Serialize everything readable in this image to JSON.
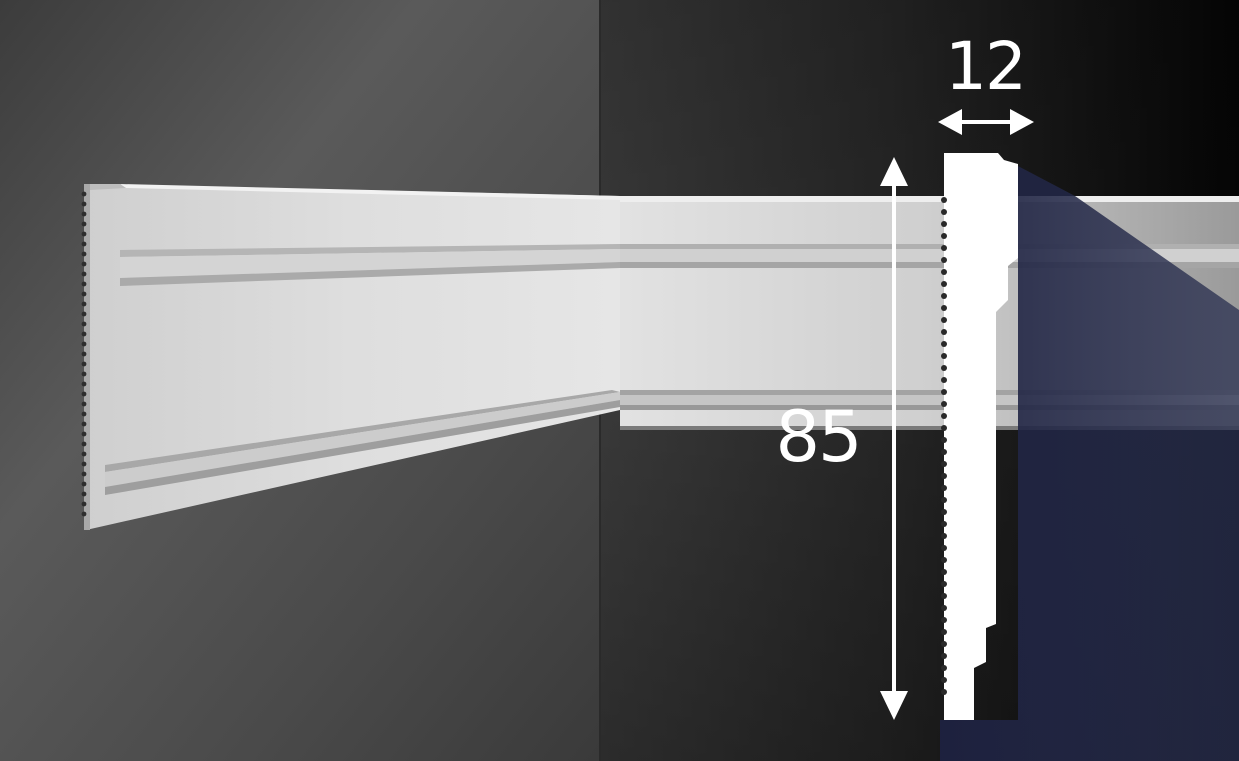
{
  "dimensions": {
    "width": "12",
    "height": "85"
  },
  "colors": {
    "wall_left": "#565656",
    "wall_right": "#2c2c2c",
    "molding": "#dcdcdc",
    "profile": "#ffffff",
    "shadow_overlay": "#1a1f3a"
  }
}
